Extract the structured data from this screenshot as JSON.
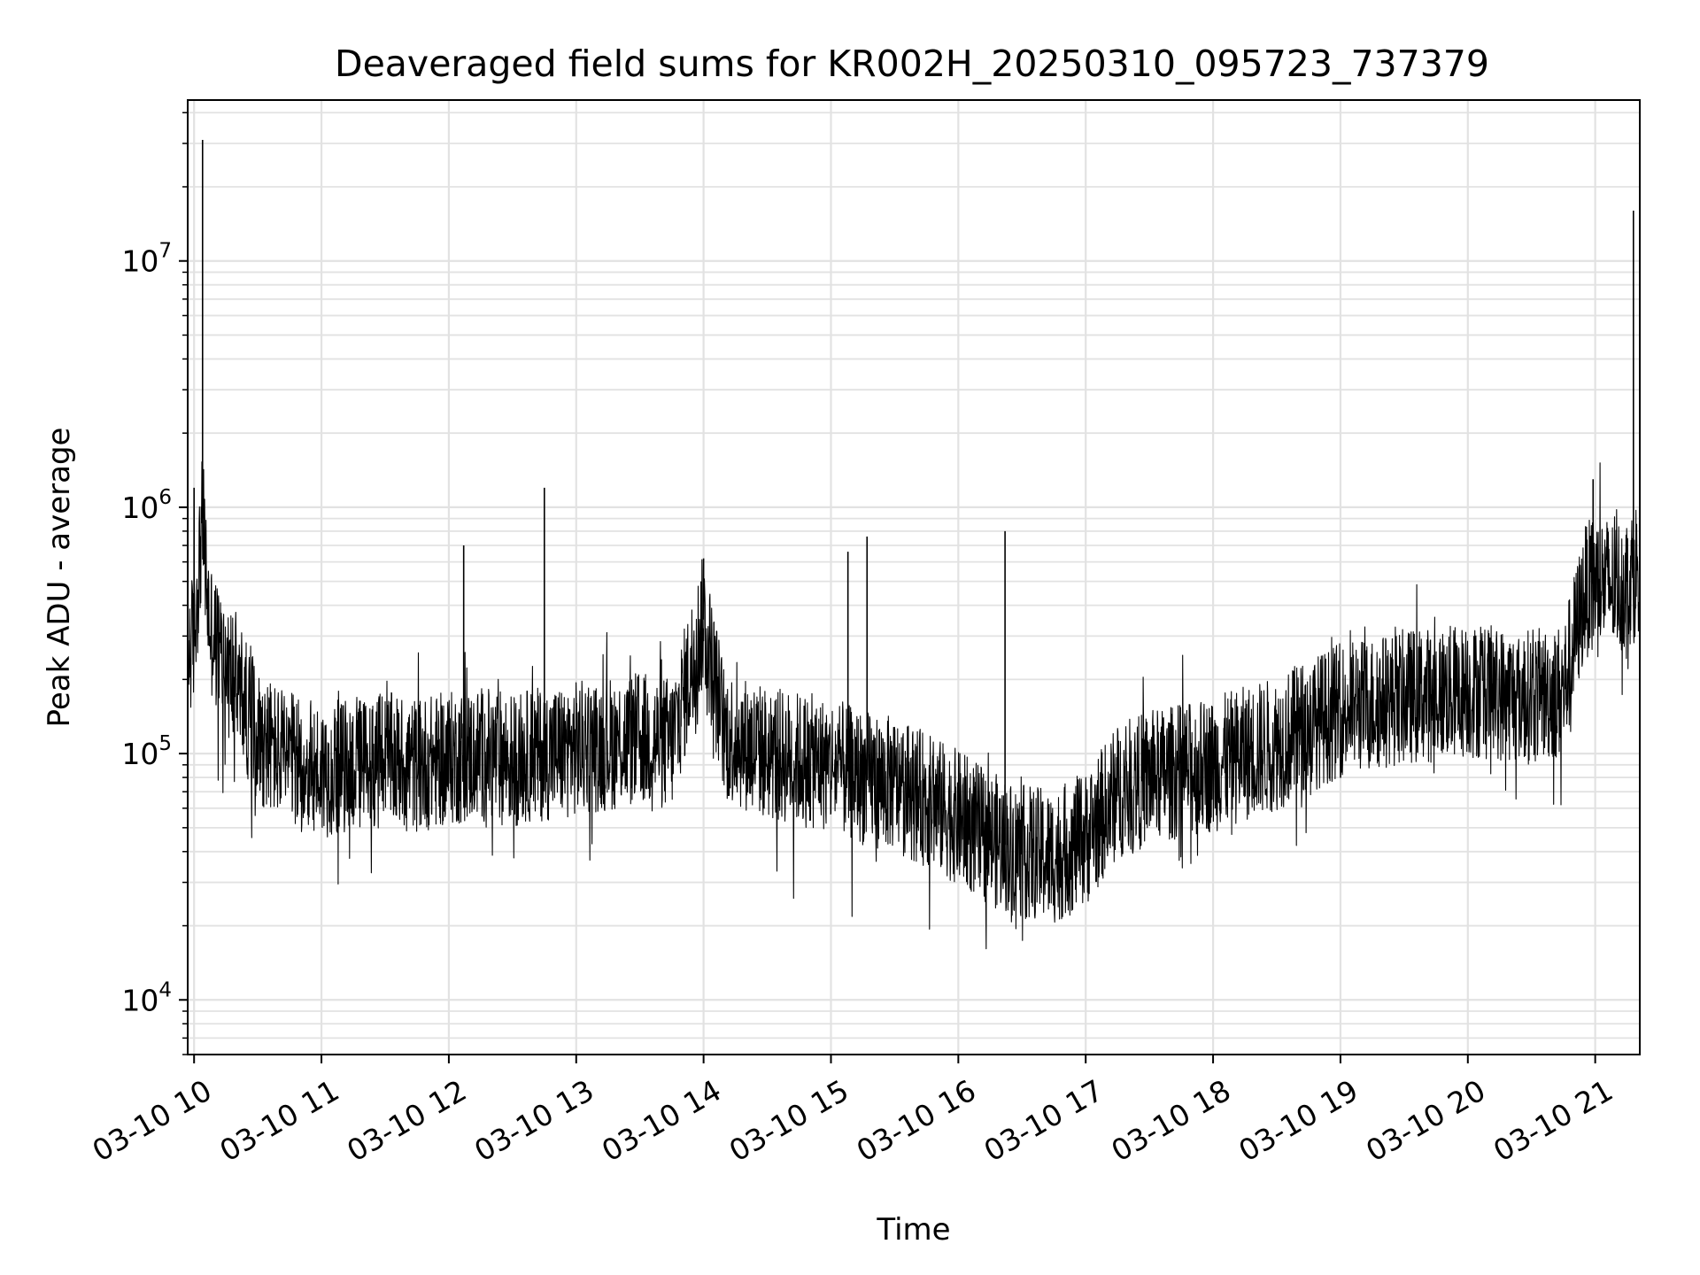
{
  "chart_data": {
    "type": "line",
    "title": "Deaveraged field sums for KR002H_20250310_095723_737379",
    "xlabel": "Time",
    "ylabel": "Peak ADU - average",
    "x_axis": {
      "type": "time",
      "range": [
        "2025-03-10 09:57",
        "2025-03-10 21:21"
      ],
      "tick_labels": [
        "03-10 10",
        "03-10 11",
        "03-10 12",
        "03-10 13",
        "03-10 14",
        "03-10 15",
        "03-10 16",
        "03-10 17",
        "03-10 18",
        "03-10 19",
        "03-10 20",
        "03-10 21"
      ]
    },
    "y_axis": {
      "scale": "log",
      "range": [
        6000,
        45000000
      ],
      "tick_labels": [
        {
          "base": "10",
          "exp": "4"
        },
        {
          "base": "10",
          "exp": "5"
        },
        {
          "base": "10",
          "exp": "6"
        },
        {
          "base": "10",
          "exp": "7"
        }
      ]
    },
    "grid": true,
    "series_color": "#000000",
    "series": [
      {
        "name": "",
        "x": [
          "09:57",
          "10:00",
          "10:04",
          "10:07",
          "10:10",
          "10:15",
          "10:20",
          "10:25",
          "10:30",
          "10:40",
          "10:50",
          "11:00",
          "11:15",
          "11:30",
          "11:45",
          "12:00",
          "12:15",
          "12:30",
          "12:45",
          "13:00",
          "13:15",
          "13:30",
          "13:45",
          "14:00",
          "14:10",
          "14:30",
          "14:45",
          "15:00",
          "15:15",
          "15:30",
          "15:45",
          "16:00",
          "16:15",
          "16:30",
          "16:45",
          "17:00",
          "17:15",
          "17:30",
          "17:45",
          "18:00",
          "18:15",
          "18:30",
          "18:45",
          "19:00",
          "19:15",
          "19:30",
          "19:45",
          "20:00",
          "20:15",
          "20:30",
          "20:45",
          "20:55",
          "21:00",
          "21:10",
          "21:15",
          "21:21"
        ],
        "y": [
          250000,
          300000,
          900000,
          350000,
          280000,
          230000,
          200000,
          150000,
          120000,
          100000,
          90000,
          85000,
          90000,
          95000,
          90000,
          95000,
          100000,
          95000,
          100000,
          105000,
          110000,
          115000,
          110000,
          350000,
          120000,
          100000,
          95000,
          90000,
          80000,
          75000,
          65000,
          55000,
          45000,
          40000,
          38000,
          45000,
          70000,
          80000,
          85000,
          90000,
          100000,
          110000,
          130000,
          150000,
          160000,
          170000,
          175000,
          180000,
          175000,
          170000,
          180000,
          450000,
          500000,
          480000,
          500000,
          600000
        ]
      }
    ],
    "spikes": [
      {
        "x": "10:04",
        "y": 31000000
      },
      {
        "x": "10:00",
        "y": 1200000
      },
      {
        "x": "12:45",
        "y": 1200000
      },
      {
        "x": "12:07",
        "y": 700000
      },
      {
        "x": "14:00",
        "y": 620000
      },
      {
        "x": "15:17",
        "y": 760000
      },
      {
        "x": "16:22",
        "y": 800000
      },
      {
        "x": "15:08",
        "y": 660000
      },
      {
        "x": "20:59",
        "y": 1300000
      },
      {
        "x": "21:18",
        "y": 16000000
      }
    ]
  }
}
